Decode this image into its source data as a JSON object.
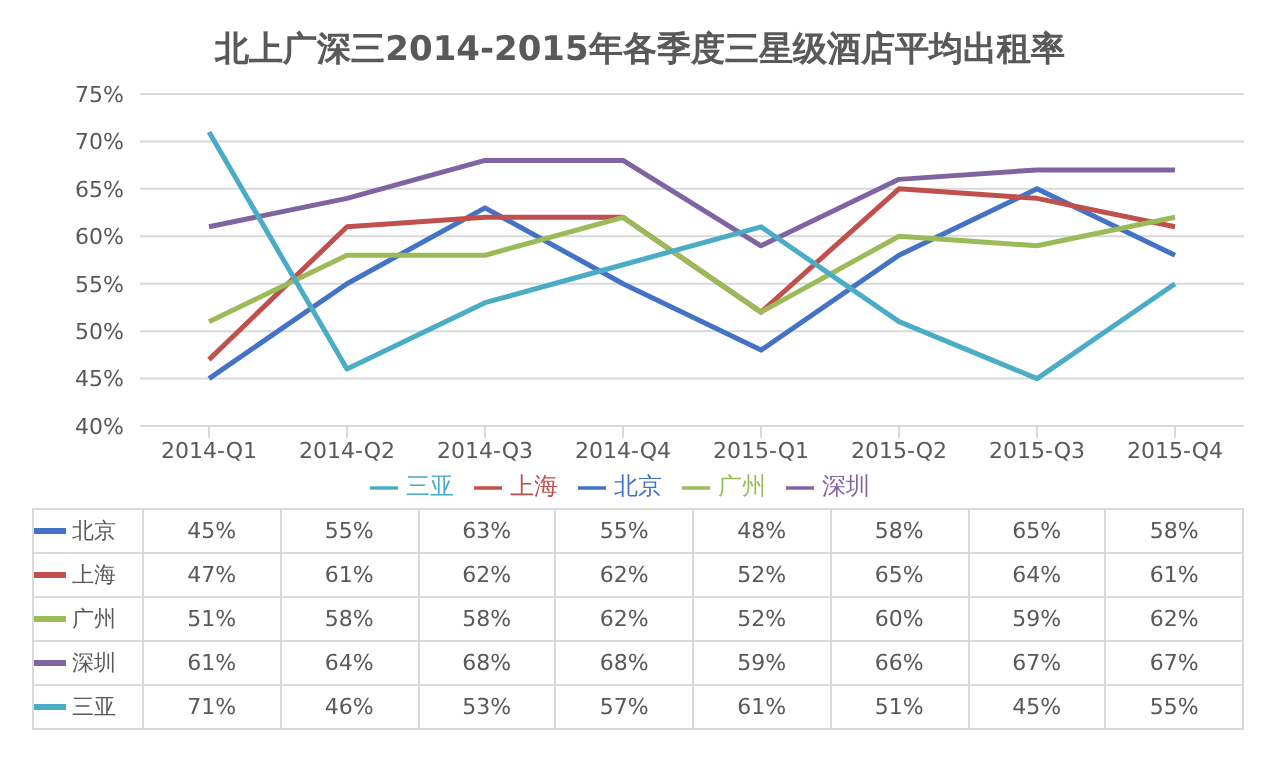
{
  "chart_data": {
    "type": "line",
    "title": "北上广深三2014-2015年各季度三星级酒店平均出租率",
    "categories": [
      "2014-Q1",
      "2014-Q2",
      "2014-Q3",
      "2014-Q4",
      "2015-Q1",
      "2015-Q2",
      "2015-Q3",
      "2015-Q4"
    ],
    "series": [
      {
        "name": "北京",
        "color": "#4472c4",
        "values": [
          45,
          55,
          63,
          55,
          48,
          58,
          65,
          58
        ],
        "value_labels": [
          "45%",
          "55%",
          "63%",
          "55%",
          "48%",
          "58%",
          "65%",
          "58%"
        ]
      },
      {
        "name": "上海",
        "color": "#c0504d",
        "values": [
          47,
          61,
          62,
          62,
          52,
          65,
          64,
          61
        ],
        "value_labels": [
          "47%",
          "61%",
          "62%",
          "62%",
          "52%",
          "65%",
          "64%",
          "61%"
        ]
      },
      {
        "name": "广州",
        "color": "#9bbb59",
        "values": [
          51,
          58,
          58,
          62,
          52,
          60,
          59,
          62
        ],
        "value_labels": [
          "51%",
          "58%",
          "58%",
          "62%",
          "52%",
          "60%",
          "59%",
          "62%"
        ]
      },
      {
        "name": "深圳",
        "color": "#8064a2",
        "values": [
          61,
          64,
          68,
          68,
          59,
          66,
          67,
          67
        ],
        "value_labels": [
          "61%",
          "64%",
          "68%",
          "68%",
          "59%",
          "66%",
          "67%",
          "67%"
        ]
      },
      {
        "name": "三亚",
        "color": "#4bacc6",
        "values": [
          71,
          46,
          53,
          57,
          61,
          51,
          45,
          55
        ],
        "value_labels": [
          "71%",
          "46%",
          "53%",
          "57%",
          "61%",
          "51%",
          "45%",
          "55%"
        ]
      }
    ],
    "ylim": [
      40,
      75
    ],
    "yticks": [
      {
        "value": 40,
        "label": "40%"
      },
      {
        "value": 45,
        "label": "45%"
      },
      {
        "value": 50,
        "label": "50%"
      },
      {
        "value": 55,
        "label": "55%"
      },
      {
        "value": 60,
        "label": "60%"
      },
      {
        "value": 65,
        "label": "65%"
      },
      {
        "value": 70,
        "label": "70%"
      },
      {
        "value": 75,
        "label": "75%"
      }
    ],
    "grid": "y",
    "legend": "bottom",
    "marker": "none",
    "line_style": "solid"
  }
}
